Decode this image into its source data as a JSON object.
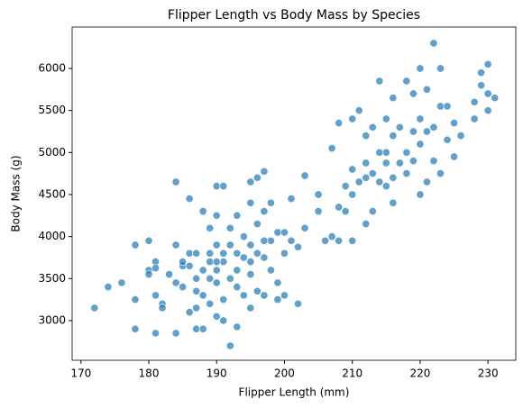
{
  "chart_data": {
    "type": "scatter",
    "title": "Flipper Length vs Body Mass by Species",
    "xlabel": "Flipper Length (mm)",
    "ylabel": "Body Mass (g)",
    "color": "#1f77b4",
    "xlim": [
      168.7,
      234.1
    ],
    "ylim": [
      2528,
      6493
    ],
    "xticks": [
      170,
      180,
      190,
      200,
      210,
      220,
      230
    ],
    "yticks": [
      3000,
      3500,
      4000,
      4500,
      5000,
      5500,
      6000
    ],
    "x": [
      172,
      174,
      176,
      178,
      178,
      178,
      180,
      180,
      180,
      181,
      181,
      181,
      181,
      182,
      182,
      183,
      184,
      184,
      184,
      184,
      185,
      185,
      186,
      186,
      186,
      187,
      187,
      187,
      187,
      187,
      188,
      188,
      188,
      188,
      189,
      189,
      189,
      189,
      190,
      190,
      190,
      190,
      190,
      190,
      191,
      191,
      191,
      191,
      191,
      192,
      192,
      192,
      192,
      193,
      193,
      193,
      193,
      193,
      194,
      194,
      194,
      195,
      195,
      195,
      195,
      195,
      196,
      196,
      196,
      196,
      197,
      197,
      197,
      197,
      198,
      198,
      198,
      199,
      199,
      199,
      200,
      200,
      200,
      201,
      201,
      202,
      202,
      203,
      203,
      205,
      205,
      206,
      207,
      207,
      208,
      208,
      208,
      209,
      209,
      210,
      210,
      210,
      210,
      211,
      211,
      212,
      212,
      212,
      212,
      213,
      213,
      213,
      214,
      214,
      214,
      215,
      215,
      215,
      215,
      216,
      216,
      216,
      216,
      217,
      217,
      218,
      218,
      218,
      219,
      219,
      219,
      220,
      220,
      220,
      220,
      221,
      221,
      221,
      222,
      222,
      222,
      223,
      223,
      223,
      224,
      224,
      225,
      225,
      226,
      228,
      228,
      229,
      229,
      230,
      230,
      230,
      231,
      186,
      189,
      197,
      195,
      185,
      190
    ],
    "y": [
      3150,
      3400,
      3450,
      3250,
      2900,
      3900,
      3600,
      3550,
      3950,
      2850,
      3300,
      3700,
      3625,
      3200,
      3150,
      3550,
      3900,
      3450,
      2850,
      4650,
      3650,
      3700,
      3100,
      4450,
      3800,
      2900,
      3150,
      3350,
      3500,
      3800,
      2900,
      3300,
      3600,
      4300,
      3500,
      3200,
      4100,
      3800,
      3050,
      3450,
      3900,
      4250,
      4600,
      3600,
      3000,
      3700,
      4600,
      3250,
      3800,
      2700,
      3500,
      3900,
      4100,
      2925,
      3400,
      3800,
      4250,
      3600,
      3300,
      3750,
      4000,
      3150,
      3550,
      3900,
      4400,
      4650,
      3350,
      3800,
      4150,
      4700,
      3300,
      3750,
      4300,
      4775,
      3600,
      3950,
      4400,
      3450,
      4050,
      3250,
      3300,
      3800,
      4050,
      3950,
      4450,
      3200,
      3875,
      4100,
      4725,
      4300,
      4500,
      3950,
      4000,
      5050,
      3950,
      4350,
      5350,
      4300,
      4600,
      3950,
      4500,
      4800,
      5400,
      4650,
      5500,
      4150,
      4700,
      4875,
      5200,
      4750,
      5300,
      4300,
      4650,
      5000,
      5850,
      4600,
      5000,
      5400,
      4875,
      4700,
      5200,
      5650,
      4400,
      4875,
      5300,
      4750,
      5000,
      5850,
      4900,
      5250,
      5700,
      4500,
      5100,
      5400,
      6000,
      4650,
      5250,
      5750,
      4900,
      5300,
      6300,
      4750,
      5550,
      6000,
      5150,
      5550,
      4950,
      5350,
      5200,
      5400,
      5600,
      5800,
      5950,
      5500,
      5700,
      6050,
      5650,
      3650,
      3700,
      3950,
      3700,
      3400,
      3700
    ]
  }
}
